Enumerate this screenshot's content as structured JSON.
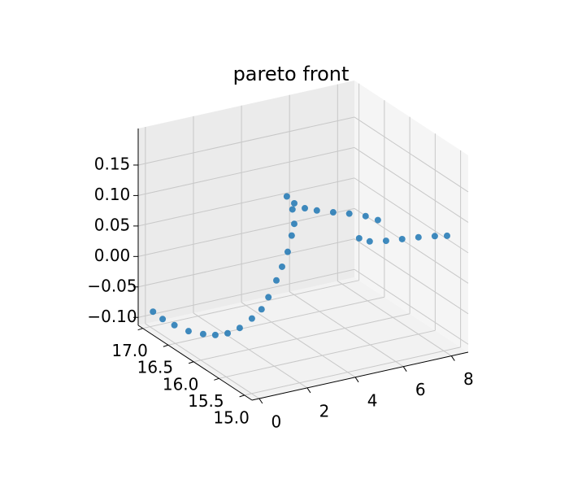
{
  "chart_data": {
    "type": "scatter3d",
    "title": "pareto front",
    "color": "#1f77b4",
    "grid": true,
    "x": [
      0.0,
      0.21,
      0.49,
      0.76,
      1.05,
      1.24,
      1.33,
      1.41,
      1.6,
      1.79,
      1.97,
      2.09,
      2.22,
      2.35,
      2.41,
      2.41,
      2.23,
      1.89,
      2.2,
      2.64,
      3.14,
      3.82,
      4.49,
      5.17,
      5.68,
      4.9,
      5.34,
      6.02,
      6.69,
      7.37,
      8.05,
      8.56
    ],
    "y": [
      16.94,
      16.85,
      16.75,
      16.6,
      16.45,
      16.3,
      16.1,
      15.9,
      15.75,
      15.65,
      15.6,
      15.5,
      15.45,
      15.4,
      15.35,
      15.3,
      15.25,
      15.2,
      15.2,
      15.2,
      15.2,
      15.2,
      15.2,
      15.2,
      15.2,
      15.2,
      15.2,
      15.2,
      15.2,
      15.2,
      15.2,
      15.2
    ],
    "z": [
      -0.085,
      -0.094,
      -0.101,
      -0.105,
      -0.104,
      -0.099,
      -0.086,
      -0.067,
      -0.045,
      -0.026,
      -0.005,
      0.027,
      0.051,
      0.077,
      0.106,
      0.128,
      0.156,
      0.183,
      0.169,
      0.157,
      0.149,
      0.14,
      0.132,
      0.122,
      0.111,
      0.088,
      0.079,
      0.074,
      0.071,
      0.068,
      0.064,
      0.06
    ],
    "xlim": [
      -0.3,
      8.7
    ],
    "ylim": [
      14.85,
      17.09
    ],
    "zlim": [
      -0.113,
      0.21
    ],
    "xticks": [
      0,
      2,
      4,
      6,
      8
    ],
    "yticks": [
      {
        "value": 15,
        "label": "15.0"
      },
      {
        "value": 15.5,
        "label": "15.5"
      },
      {
        "value": 16,
        "label": "16.0"
      },
      {
        "value": 16.5,
        "label": "16.5"
      },
      {
        "value": 17,
        "label": "17.0"
      }
    ],
    "zticks": [
      {
        "value": -0.1,
        "label": "−0.10"
      },
      {
        "value": -0.05,
        "label": "−0.05"
      },
      {
        "value": 0,
        "label": "0.00"
      },
      {
        "value": 0.05,
        "label": "0.05"
      },
      {
        "value": 0.1,
        "label": "0.10"
      },
      {
        "value": 0.15,
        "label": "0.15"
      }
    ]
  }
}
